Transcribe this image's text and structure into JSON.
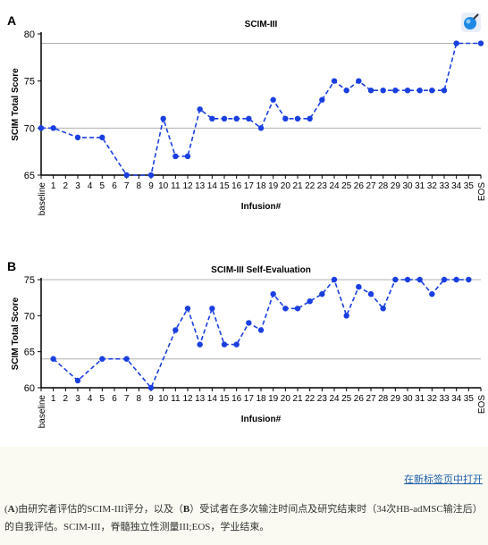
{
  "chart_data": [
    {
      "panel_label": "A",
      "type": "line",
      "title": "SCIM-III",
      "xlabel": "Infusion#",
      "ylabel": "SCIM Total Score",
      "ylim": [
        65,
        80
      ],
      "yticks": [
        65,
        70,
        75,
        80
      ],
      "reference_lines": [
        70,
        79
      ],
      "categories": [
        "baseline",
        "1",
        "2",
        "3",
        "4",
        "5",
        "6",
        "7",
        "8",
        "9",
        "10",
        "11",
        "12",
        "13",
        "14",
        "15",
        "16",
        "17",
        "18",
        "19",
        "20",
        "21",
        "22",
        "23",
        "24",
        "25",
        "26",
        "27",
        "28",
        "29",
        "30",
        "31",
        "32",
        "33",
        "34",
        "35",
        "EOS"
      ],
      "x": [
        "baseline",
        "1",
        "3",
        "5",
        "7",
        "9",
        "10",
        "11",
        "12",
        "13",
        "14",
        "15",
        "16",
        "17",
        "18",
        "19",
        "20",
        "21",
        "22",
        "23",
        "24",
        "25",
        "26",
        "27",
        "28",
        "29",
        "30",
        "31",
        "32",
        "33",
        "34",
        "EOS"
      ],
      "values": [
        70,
        70,
        69,
        69,
        65,
        65,
        71,
        67,
        67,
        72,
        71,
        71,
        71,
        71,
        70,
        73,
        71,
        71,
        71,
        73,
        75,
        74,
        75,
        74,
        74,
        74,
        74,
        74,
        74,
        74,
        79,
        79
      ],
      "color": "#1a3fe0",
      "line_style": "dashed"
    },
    {
      "panel_label": "B",
      "type": "line",
      "title": "SCIM-III Self-Evaluation",
      "xlabel": "Infusion#",
      "ylabel": "SCIM Total Score",
      "ylim": [
        60,
        75
      ],
      "yticks": [
        60,
        65,
        70,
        75
      ],
      "reference_lines": [
        64,
        75
      ],
      "categories": [
        "baseline",
        "1",
        "2",
        "3",
        "4",
        "5",
        "6",
        "7",
        "8",
        "9",
        "10",
        "11",
        "12",
        "13",
        "14",
        "15",
        "16",
        "17",
        "18",
        "19",
        "20",
        "21",
        "22",
        "23",
        "24",
        "25",
        "26",
        "27",
        "28",
        "29",
        "30",
        "31",
        "32",
        "33",
        "34",
        "35",
        "EOS"
      ],
      "x": [
        "1",
        "3",
        "5",
        "7",
        "9",
        "11",
        "12",
        "13",
        "14",
        "15",
        "16",
        "17",
        "18",
        "19",
        "20",
        "21",
        "22",
        "23",
        "24",
        "25",
        "26",
        "27",
        "28",
        "29",
        "30",
        "31",
        "32",
        "33",
        "34",
        "35"
      ],
      "values": [
        64,
        61,
        64,
        64,
        60,
        68,
        71,
        66,
        71,
        66,
        66,
        69,
        68,
        73,
        71,
        71,
        72,
        73,
        75,
        70,
        74,
        73,
        71,
        75,
        75,
        75,
        73,
        75,
        75,
        75
      ],
      "color": "#1a3fe0",
      "line_style": "dashed"
    }
  ],
  "footer": {
    "open_link": "在新标签页中打开",
    "caption": {
      "label_a": "A",
      "text_a": "由研究者评估的SCIM-III评分，以及（",
      "label_b": "B",
      "text_b": "）受试者在多次输注时间点及研究结束时（34次HB-adMSC输注后）的自我评估。SCIM-III，脊髓独立性测量III;EOS，学业结束。"
    }
  },
  "colors": {
    "series": "#1a3fe0",
    "reference": "#b0b0b0",
    "link": "#1f5fa8"
  },
  "icons": {
    "app": "blue-sphere-icon"
  }
}
